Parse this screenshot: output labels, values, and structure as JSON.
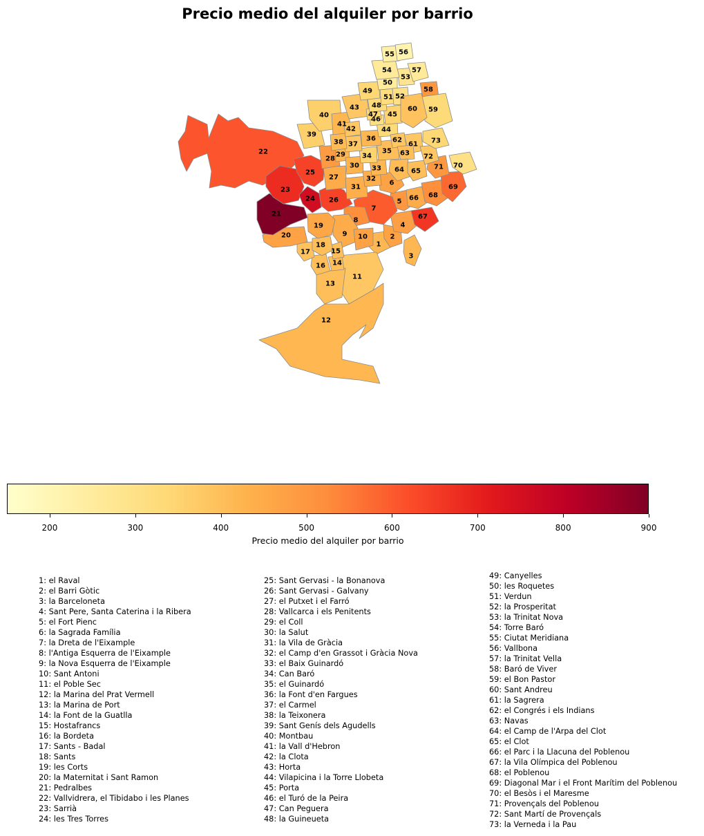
{
  "title": "Precio medio del alquiler por barrio",
  "colorbar": {
    "label": "Precio medio del alquiler por barrio",
    "min": 150,
    "max": 900,
    "ticks": [
      "200",
      "300",
      "400",
      "500",
      "600",
      "700",
      "800",
      "900"
    ],
    "colormap": "YlOrRd",
    "colors": [
      "#ffffcc",
      "#ffeda0",
      "#fed976",
      "#feb24c",
      "#fd8d3c",
      "#fc4e2a",
      "#e31a1c",
      "#bd0026",
      "#800026"
    ]
  },
  "chart_data": {
    "type": "choropleth",
    "title": "Precio medio del alquiler por barrio",
    "value_range": [
      150,
      900
    ],
    "values_estimated": {
      "1": 420,
      "2": 470,
      "3": 420,
      "4": 480,
      "5": 500,
      "6": 470,
      "7": 600,
      "8": 520,
      "9": 450,
      "10": 470,
      "11": 380,
      "12": 420,
      "13": 400,
      "14": 400,
      "15": 400,
      "16": 400,
      "17": 390,
      "18": 400,
      "19": 460,
      "20": 470,
      "21": 900,
      "22": 610,
      "23": 680,
      "24": 760,
      "25": 640,
      "26": 640,
      "27": 450,
      "28": 490,
      "29": 420,
      "30": 430,
      "31": 440,
      "32": 440,
      "33": 420,
      "34": 350,
      "35": 400,
      "36": 420,
      "37": 380,
      "38": 410,
      "39": 360,
      "40": 360,
      "41": 420,
      "42": 380,
      "43": 380,
      "44": 330,
      "45": 350,
      "46": 310,
      "47": 340,
      "48": 330,
      "49": 340,
      "50": 250,
      "51": 320,
      "52": 300,
      "53": 280,
      "54": 260,
      "55": 230,
      "56": 210,
      "57": 260,
      "58": 500,
      "59": 330,
      "60": 390,
      "61": 380,
      "62": 380,
      "63": 400,
      "64": 410,
      "65": 400,
      "66": 450,
      "67": 660,
      "68": 520,
      "69": 580,
      "70": 300,
      "71": 500,
      "72": 380,
      "73": 340
    }
  },
  "neighbourhoods": [
    {
      "id": "1",
      "name": "el Raval"
    },
    {
      "id": "2",
      "name": "el Barri Gòtic"
    },
    {
      "id": "3",
      "name": "la Barceloneta"
    },
    {
      "id": "4",
      "name": "Sant Pere, Santa Caterina i la Ribera"
    },
    {
      "id": "5",
      "name": "el Fort Pienc"
    },
    {
      "id": "6",
      "name": "la Sagrada Família"
    },
    {
      "id": "7",
      "name": "la Dreta de l'Eixample"
    },
    {
      "id": "8",
      "name": "l'Antiga Esquerra de l'Eixample"
    },
    {
      "id": "9",
      "name": "la Nova Esquerra de l'Eixample"
    },
    {
      "id": "10",
      "name": "Sant Antoni"
    },
    {
      "id": "11",
      "name": "el Poble Sec"
    },
    {
      "id": "12",
      "name": "la Marina del Prat Vermell"
    },
    {
      "id": "13",
      "name": "la Marina de Port"
    },
    {
      "id": "14",
      "name": "la Font de la Guatlla"
    },
    {
      "id": "15",
      "name": "Hostafrancs"
    },
    {
      "id": "16",
      "name": "la Bordeta"
    },
    {
      "id": "17",
      "name": "Sants - Badal"
    },
    {
      "id": "18",
      "name": "Sants"
    },
    {
      "id": "19",
      "name": "les Corts"
    },
    {
      "id": "20",
      "name": "la Maternitat i Sant Ramon"
    },
    {
      "id": "21",
      "name": "Pedralbes"
    },
    {
      "id": "22",
      "name": "Vallvidrera, el Tibidabo i les Planes"
    },
    {
      "id": "23",
      "name": "Sarrià"
    },
    {
      "id": "24",
      "name": "les Tres Torres"
    },
    {
      "id": "25",
      "name": "Sant Gervasi - la Bonanova"
    },
    {
      "id": "26",
      "name": "Sant Gervasi - Galvany"
    },
    {
      "id": "27",
      "name": "el Putxet i el Farró"
    },
    {
      "id": "28",
      "name": "Vallcarca i els Penitents"
    },
    {
      "id": "29",
      "name": "el Coll"
    },
    {
      "id": "30",
      "name": "la Salut"
    },
    {
      "id": "31",
      "name": "la Vila de Gràcia"
    },
    {
      "id": "32",
      "name": "el Camp d'en Grassot i Gràcia Nova"
    },
    {
      "id": "33",
      "name": "el Baix Guinardó"
    },
    {
      "id": "34",
      "name": "Can Baró"
    },
    {
      "id": "35",
      "name": "el Guinardó"
    },
    {
      "id": "36",
      "name": "la Font d'en Fargues"
    },
    {
      "id": "37",
      "name": "el Carmel"
    },
    {
      "id": "38",
      "name": "la Teixonera"
    },
    {
      "id": "39",
      "name": "Sant Genís dels Agudells"
    },
    {
      "id": "40",
      "name": "Montbau"
    },
    {
      "id": "41",
      "name": "la Vall d'Hebron"
    },
    {
      "id": "42",
      "name": "la Clota"
    },
    {
      "id": "43",
      "name": "Horta"
    },
    {
      "id": "44",
      "name": "Vilapicina i la Torre Llobeta"
    },
    {
      "id": "45",
      "name": "Porta"
    },
    {
      "id": "46",
      "name": "el Turó de la Peira"
    },
    {
      "id": "47",
      "name": "Can Peguera"
    },
    {
      "id": "48",
      "name": "la Guineueta"
    },
    {
      "id": "49",
      "name": "Canyelles"
    },
    {
      "id": "50",
      "name": "les Roquetes"
    },
    {
      "id": "51",
      "name": "Verdun"
    },
    {
      "id": "52",
      "name": "la Prosperitat"
    },
    {
      "id": "53",
      "name": "la Trinitat Nova"
    },
    {
      "id": "54",
      "name": "Torre Baró"
    },
    {
      "id": "55",
      "name": "Ciutat Meridiana"
    },
    {
      "id": "56",
      "name": "Vallbona"
    },
    {
      "id": "57",
      "name": "la Trinitat Vella"
    },
    {
      "id": "58",
      "name": "Baró de Viver"
    },
    {
      "id": "59",
      "name": "el Bon Pastor"
    },
    {
      "id": "60",
      "name": "Sant Andreu"
    },
    {
      "id": "61",
      "name": "la Sagrera"
    },
    {
      "id": "62",
      "name": "el Congrés i els Indians"
    },
    {
      "id": "63",
      "name": "Navas"
    },
    {
      "id": "64",
      "name": "el Camp de l'Arpa del Clot"
    },
    {
      "id": "65",
      "name": "el Clot"
    },
    {
      "id": "66",
      "name": "el Parc i la Llacuna del Poblenou"
    },
    {
      "id": "67",
      "name": "la Vila Olímpica del Poblenou"
    },
    {
      "id": "68",
      "name": "el Poblenou"
    },
    {
      "id": "69",
      "name": "Diagonal Mar i el Front Marítim del Poblenou"
    },
    {
      "id": "70",
      "name": "el Besòs i el Maresme"
    },
    {
      "id": "71",
      "name": "Provençals del Poblenou"
    },
    {
      "id": "72",
      "name": "Sant Martí de Provençals"
    },
    {
      "id": "73",
      "name": "la Verneda i la Pau"
    }
  ]
}
